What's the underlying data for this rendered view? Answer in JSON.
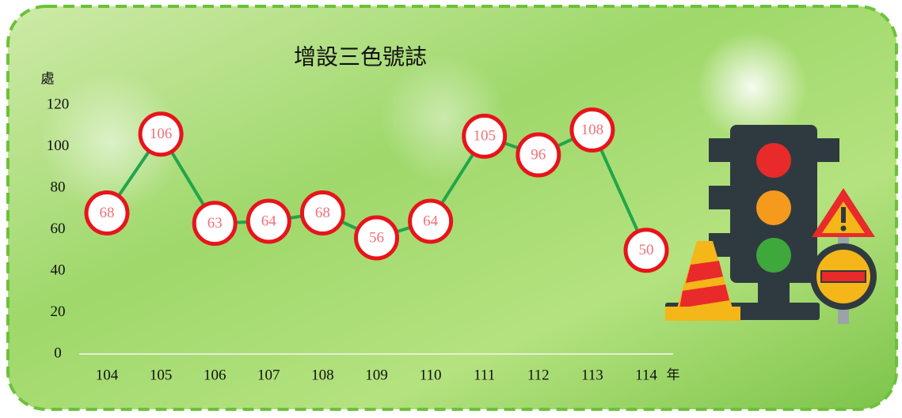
{
  "chart_data": {
    "type": "line",
    "title": "增設三色號誌",
    "y_label": "處",
    "x_label": "年",
    "categories": [
      "104",
      "105",
      "106",
      "107",
      "108",
      "109",
      "110",
      "111",
      "112",
      "113",
      "114"
    ],
    "values": [
      68,
      106,
      63,
      64,
      68,
      56,
      64,
      105,
      96,
      108,
      50
    ],
    "color": "#22a54a",
    "marker_color": "#e8141b",
    "ylim": [
      0,
      120
    ],
    "yticks": [
      0,
      20,
      40,
      60,
      80,
      100,
      120
    ],
    "grid": false
  }
}
